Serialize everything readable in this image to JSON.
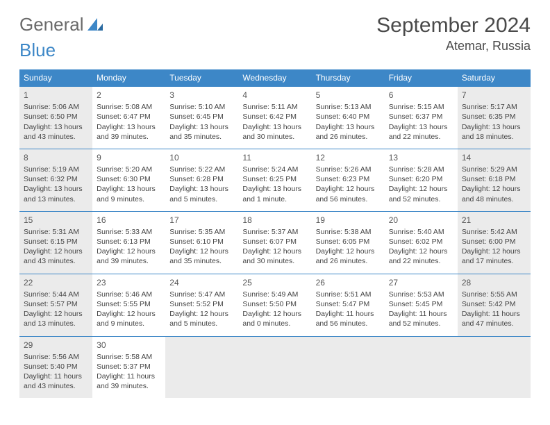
{
  "logo": {
    "part1": "General",
    "part2": "Blue"
  },
  "title": "September 2024",
  "location": "Atemar, Russia",
  "colors": {
    "header_bg": "#3d87c7",
    "header_fg": "#ffffff",
    "shaded_bg": "#ebebeb",
    "border": "#3d87c7",
    "text": "#444444",
    "title_color": "#4a4a4a"
  },
  "dayNames": [
    "Sunday",
    "Monday",
    "Tuesday",
    "Wednesday",
    "Thursday",
    "Friday",
    "Saturday"
  ],
  "weeks": [
    [
      {
        "n": "1",
        "sr": "5:06 AM",
        "ss": "6:50 PM",
        "dl": "13 hours and 43 minutes.",
        "shaded": true
      },
      {
        "n": "2",
        "sr": "5:08 AM",
        "ss": "6:47 PM",
        "dl": "13 hours and 39 minutes."
      },
      {
        "n": "3",
        "sr": "5:10 AM",
        "ss": "6:45 PM",
        "dl": "13 hours and 35 minutes."
      },
      {
        "n": "4",
        "sr": "5:11 AM",
        "ss": "6:42 PM",
        "dl": "13 hours and 30 minutes."
      },
      {
        "n": "5",
        "sr": "5:13 AM",
        "ss": "6:40 PM",
        "dl": "13 hours and 26 minutes."
      },
      {
        "n": "6",
        "sr": "5:15 AM",
        "ss": "6:37 PM",
        "dl": "13 hours and 22 minutes."
      },
      {
        "n": "7",
        "sr": "5:17 AM",
        "ss": "6:35 PM",
        "dl": "13 hours and 18 minutes.",
        "shaded": true
      }
    ],
    [
      {
        "n": "8",
        "sr": "5:19 AM",
        "ss": "6:32 PM",
        "dl": "13 hours and 13 minutes.",
        "shaded": true
      },
      {
        "n": "9",
        "sr": "5:20 AM",
        "ss": "6:30 PM",
        "dl": "13 hours and 9 minutes."
      },
      {
        "n": "10",
        "sr": "5:22 AM",
        "ss": "6:28 PM",
        "dl": "13 hours and 5 minutes."
      },
      {
        "n": "11",
        "sr": "5:24 AM",
        "ss": "6:25 PM",
        "dl": "13 hours and 1 minute."
      },
      {
        "n": "12",
        "sr": "5:26 AM",
        "ss": "6:23 PM",
        "dl": "12 hours and 56 minutes."
      },
      {
        "n": "13",
        "sr": "5:28 AM",
        "ss": "6:20 PM",
        "dl": "12 hours and 52 minutes."
      },
      {
        "n": "14",
        "sr": "5:29 AM",
        "ss": "6:18 PM",
        "dl": "12 hours and 48 minutes.",
        "shaded": true
      }
    ],
    [
      {
        "n": "15",
        "sr": "5:31 AM",
        "ss": "6:15 PM",
        "dl": "12 hours and 43 minutes.",
        "shaded": true
      },
      {
        "n": "16",
        "sr": "5:33 AM",
        "ss": "6:13 PM",
        "dl": "12 hours and 39 minutes."
      },
      {
        "n": "17",
        "sr": "5:35 AM",
        "ss": "6:10 PM",
        "dl": "12 hours and 35 minutes."
      },
      {
        "n": "18",
        "sr": "5:37 AM",
        "ss": "6:07 PM",
        "dl": "12 hours and 30 minutes."
      },
      {
        "n": "19",
        "sr": "5:38 AM",
        "ss": "6:05 PM",
        "dl": "12 hours and 26 minutes."
      },
      {
        "n": "20",
        "sr": "5:40 AM",
        "ss": "6:02 PM",
        "dl": "12 hours and 22 minutes."
      },
      {
        "n": "21",
        "sr": "5:42 AM",
        "ss": "6:00 PM",
        "dl": "12 hours and 17 minutes.",
        "shaded": true
      }
    ],
    [
      {
        "n": "22",
        "sr": "5:44 AM",
        "ss": "5:57 PM",
        "dl": "12 hours and 13 minutes.",
        "shaded": true
      },
      {
        "n": "23",
        "sr": "5:46 AM",
        "ss": "5:55 PM",
        "dl": "12 hours and 9 minutes."
      },
      {
        "n": "24",
        "sr": "5:47 AM",
        "ss": "5:52 PM",
        "dl": "12 hours and 5 minutes."
      },
      {
        "n": "25",
        "sr": "5:49 AM",
        "ss": "5:50 PM",
        "dl": "12 hours and 0 minutes."
      },
      {
        "n": "26",
        "sr": "5:51 AM",
        "ss": "5:47 PM",
        "dl": "11 hours and 56 minutes."
      },
      {
        "n": "27",
        "sr": "5:53 AM",
        "ss": "5:45 PM",
        "dl": "11 hours and 52 minutes."
      },
      {
        "n": "28",
        "sr": "5:55 AM",
        "ss": "5:42 PM",
        "dl": "11 hours and 47 minutes.",
        "shaded": true
      }
    ],
    [
      {
        "n": "29",
        "sr": "5:56 AM",
        "ss": "5:40 PM",
        "dl": "11 hours and 43 minutes.",
        "shaded": true
      },
      {
        "n": "30",
        "sr": "5:58 AM",
        "ss": "5:37 PM",
        "dl": "11 hours and 39 minutes."
      },
      {
        "empty": true
      },
      {
        "empty": true
      },
      {
        "empty": true
      },
      {
        "empty": true
      },
      {
        "empty": true
      }
    ]
  ],
  "labels": {
    "sunrise": "Sunrise: ",
    "sunset": "Sunset: ",
    "daylight": "Daylight: "
  }
}
